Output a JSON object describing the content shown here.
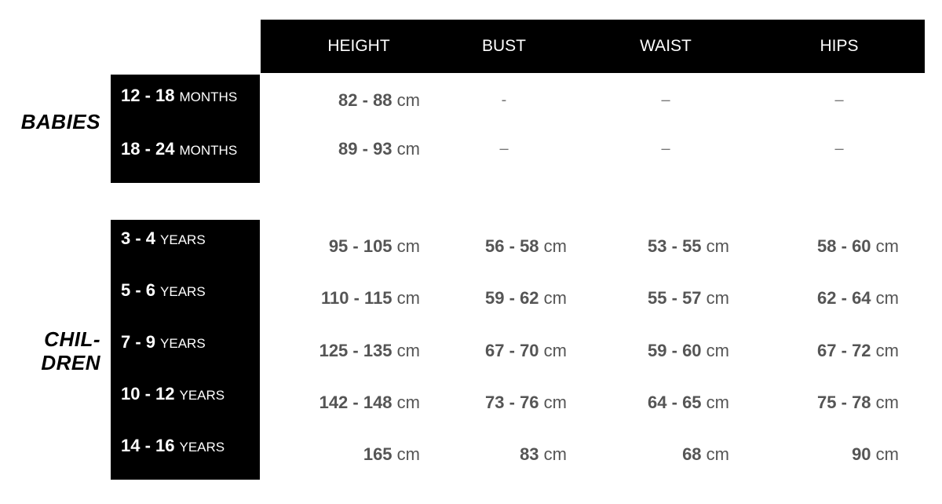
{
  "columns": [
    "HEIGHT",
    "BUST",
    "WAIST",
    "HIPS"
  ],
  "groups": [
    {
      "label": "BABIES",
      "rows": [
        {
          "range": "12 - 18",
          "unit": "MONTHS",
          "values": [
            {
              "num": "82 - 88",
              "unit": "cm"
            },
            {
              "dash": "-"
            },
            {
              "dash": "–"
            },
            {
              "dash": "–"
            }
          ]
        },
        {
          "range": "18 - 24",
          "unit": "MONTHS",
          "values": [
            {
              "num": "89 - 93",
              "unit": "cm"
            },
            {
              "dash": "–"
            },
            {
              "dash": "–"
            },
            {
              "dash": "–"
            }
          ]
        }
      ]
    },
    {
      "label": "CHIL-\nDREN",
      "label_lines": [
        "CHIL-",
        "DREN"
      ],
      "rows": [
        {
          "range": "3 - 4",
          "unit": "YEARS",
          "values": [
            {
              "num": "95 - 105",
              "unit": "cm"
            },
            {
              "num": "56 - 58",
              "unit": "cm"
            },
            {
              "num": "53 - 55",
              "unit": "cm"
            },
            {
              "num": "58 - 60",
              "unit": "cm"
            }
          ]
        },
        {
          "range": "5 - 6",
          "unit": "YEARS",
          "values": [
            {
              "num": "110 - 115",
              "unit": "cm"
            },
            {
              "num": "59 - 62",
              "unit": "cm"
            },
            {
              "num": "55 - 57",
              "unit": "cm"
            },
            {
              "num": "62 - 64",
              "unit": "cm"
            }
          ]
        },
        {
          "range": "7 - 9",
          "unit": "YEARS",
          "values": [
            {
              "num": "125 - 135",
              "unit": "cm"
            },
            {
              "num": "67 - 70",
              "unit": "cm"
            },
            {
              "num": "59 - 60",
              "unit": "cm"
            },
            {
              "num": "67 - 72",
              "unit": "cm"
            }
          ]
        },
        {
          "range": "10 - 12",
          "unit": "YEARS",
          "values": [
            {
              "num": "142 - 148",
              "unit": "cm"
            },
            {
              "num": "73 - 76",
              "unit": "cm"
            },
            {
              "num": "64 - 65",
              "unit": "cm"
            },
            {
              "num": "75 - 78",
              "unit": "cm"
            }
          ]
        },
        {
          "range": "14 - 16",
          "unit": "YEARS",
          "values": [
            {
              "num": "165",
              "unit": "cm"
            },
            {
              "num": "83",
              "unit": "cm"
            },
            {
              "num": "68",
              "unit": "cm"
            },
            {
              "num": "90",
              "unit": "cm"
            }
          ]
        }
      ]
    }
  ],
  "colors": {
    "header_bg": "#000000",
    "value_text": "#555555"
  }
}
